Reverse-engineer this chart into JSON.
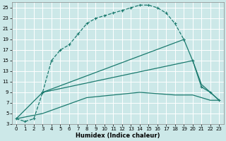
{
  "xlabel": "Humidex (Indice chaleur)",
  "bg_color": "#cce8e8",
  "grid_color": "#b8d8d8",
  "line_color": "#1a7a6e",
  "xlim": [
    -0.5,
    23.5
  ],
  "ylim": [
    3,
    26
  ],
  "xticks": [
    0,
    1,
    2,
    3,
    4,
    5,
    6,
    7,
    8,
    9,
    10,
    11,
    12,
    13,
    14,
    15,
    16,
    17,
    18,
    19,
    20,
    21,
    22,
    23
  ],
  "yticks": [
    3,
    5,
    7,
    9,
    11,
    13,
    15,
    17,
    19,
    21,
    23,
    25
  ],
  "curve1_x": [
    0,
    1,
    2,
    3,
    4,
    5,
    6,
    7,
    8,
    9,
    10,
    11,
    12,
    13,
    14,
    15,
    16,
    17,
    18,
    19,
    20,
    21,
    22,
    23
  ],
  "curve1_y": [
    4,
    3.5,
    4,
    9,
    15,
    17,
    18,
    20,
    22,
    23,
    23.5,
    24,
    24.5,
    25,
    25.5,
    25.5,
    25,
    24,
    22,
    19,
    null,
    null,
    null,
    null
  ],
  "curve2_x": [
    3,
    19,
    20,
    21,
    22,
    23
  ],
  "curve2_y": [
    9,
    19,
    15,
    10,
    9,
    7.5
  ],
  "curve3_x": [
    0,
    3,
    20,
    21,
    22,
    23
  ],
  "curve3_y": [
    4,
    9,
    15,
    10.5,
    9,
    7.5
  ],
  "curve4_x": [
    0,
    3,
    8,
    14,
    18,
    20,
    21,
    22,
    23
  ],
  "curve4_y": [
    4,
    5,
    8,
    9,
    8.5,
    8.5,
    8,
    7.5,
    7.5
  ]
}
